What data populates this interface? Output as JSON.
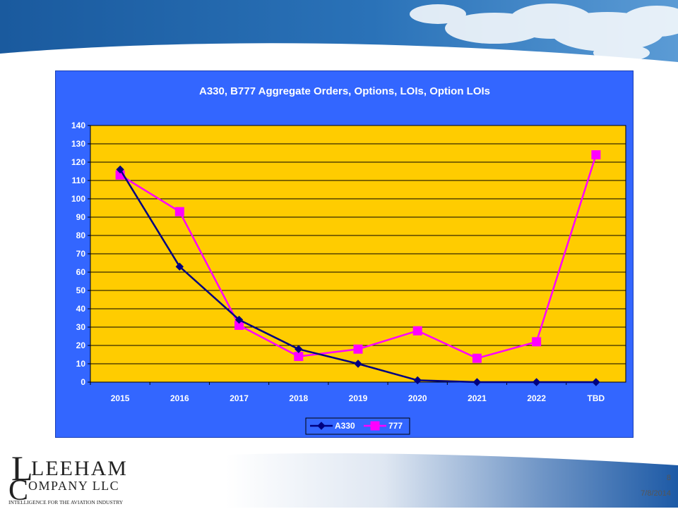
{
  "colors": {
    "chart_bg": "#3366ff",
    "plot_bg": "#ffcc00",
    "a330": "#000080",
    "b777": "#ff00ff",
    "text": "#ffffff"
  },
  "logo": {
    "line1": "LEEHAM",
    "line2": "COMPANY LLC",
    "tagline": "INTELLIGENCE FOR THE AVIATION INDUSTRY"
  },
  "footer": {
    "page": "8",
    "date": "7/8/2014"
  },
  "chart_data": {
    "type": "line",
    "title": "A330, B777 Aggregate Orders, Options, LOIs, Option LOIs",
    "categories": [
      "2015",
      "2016",
      "2017",
      "2018",
      "2019",
      "2020",
      "2021",
      "2022",
      "TBD"
    ],
    "yticks": [
      "0",
      "10",
      "20",
      "30",
      "40",
      "50",
      "60",
      "70",
      "80",
      "90",
      "100",
      "110",
      "120",
      "130",
      "140"
    ],
    "ylim": [
      0,
      140
    ],
    "grid": true,
    "legend": "bottom",
    "series": [
      {
        "name": "A330",
        "marker": "diamond",
        "values": [
          116,
          63,
          34,
          18,
          10,
          1,
          0,
          0,
          0
        ]
      },
      {
        "name": "777",
        "marker": "square",
        "values": [
          113,
          93,
          31,
          14,
          18,
          28,
          13,
          22,
          124
        ]
      }
    ]
  }
}
